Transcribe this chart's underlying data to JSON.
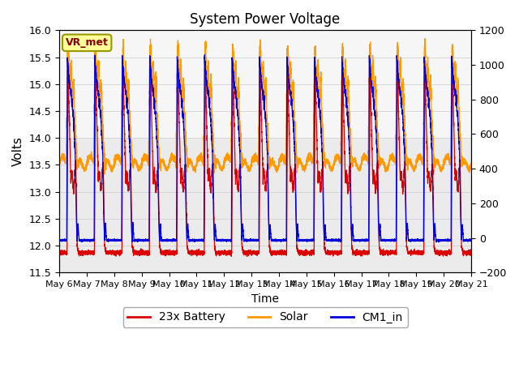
{
  "title": "System Power Voltage",
  "xlabel": "Time",
  "ylabel": "Volts",
  "ylim_left": [
    11.5,
    16.0
  ],
  "ylim_right": [
    -200,
    1200
  ],
  "yticks_left": [
    11.5,
    12.0,
    12.5,
    13.0,
    13.5,
    14.0,
    14.5,
    15.0,
    15.5,
    16.0
  ],
  "yticks_right": [
    -200,
    0,
    200,
    400,
    600,
    800,
    1000,
    1200
  ],
  "colors": {
    "battery": "#dd0000",
    "solar": "#ff9900",
    "cm1": "#0000dd"
  },
  "annotation_text": "VR_met",
  "annotation_color": "#8b0000",
  "annotation_bg": "#ffff99",
  "annotation_border": "#999900",
  "legend_labels": [
    "23x Battery",
    "Solar",
    "CM1_in"
  ],
  "grid_color": "#cccccc",
  "bg_color": "#ebebeb",
  "fig_bg": "#ffffff",
  "shade_bg": "#f0f0f0"
}
